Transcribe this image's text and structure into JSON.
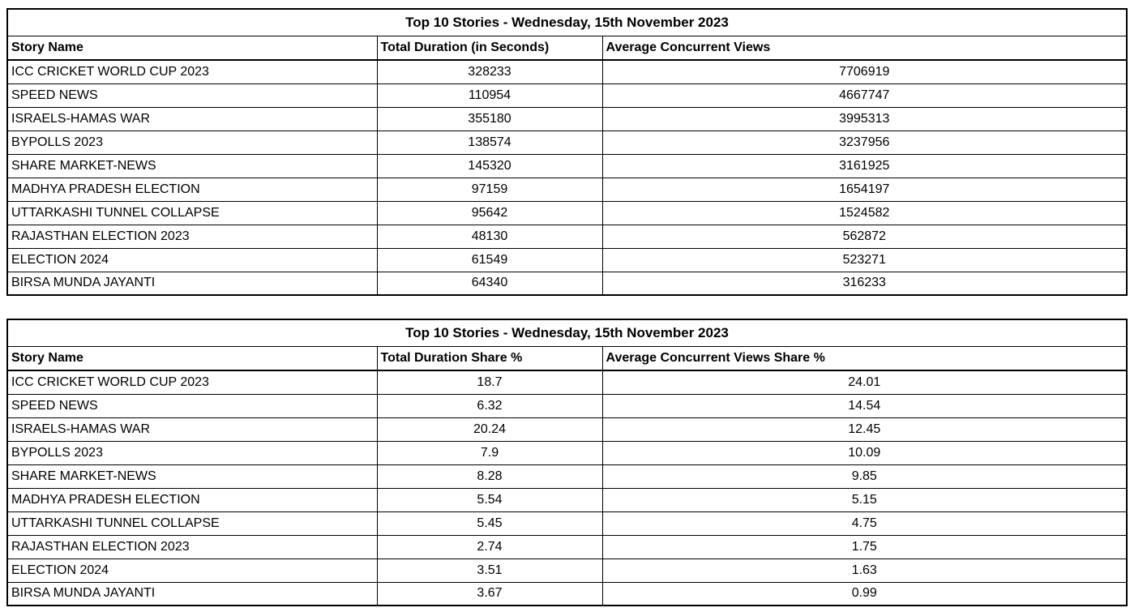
{
  "chart_data": [
    {
      "type": "table",
      "title": "Top 10 Stories - Wednesday, 15th November 2023",
      "columns": [
        "Story Name",
        "Total Duration (in Seconds)",
        "Average Concurrent Views"
      ],
      "rows": [
        [
          "ICC CRICKET WORLD CUP 2023",
          "328233",
          "7706919"
        ],
        [
          "SPEED NEWS",
          "110954",
          "4667747"
        ],
        [
          "ISRAELS-HAMAS WAR",
          "355180",
          "3995313"
        ],
        [
          "BYPOLLS 2023",
          "138574",
          "3237956"
        ],
        [
          "SHARE MARKET-NEWS",
          "145320",
          "3161925"
        ],
        [
          "MADHYA PRADESH ELECTION",
          "97159",
          "1654197"
        ],
        [
          "UTTARKASHI TUNNEL COLLAPSE",
          "95642",
          "1524582"
        ],
        [
          "RAJASTHAN ELECTION 2023",
          "48130",
          "562872"
        ],
        [
          "ELECTION 2024",
          "61549",
          "523271"
        ],
        [
          "BIRSA MUNDA JAYANTI",
          "64340",
          "316233"
        ]
      ]
    },
    {
      "type": "table",
      "title": "Top 10 Stories - Wednesday, 15th November 2023",
      "columns": [
        "Story Name",
        "Total Duration Share %",
        "Average Concurrent Views Share %"
      ],
      "rows": [
        [
          "ICC CRICKET WORLD CUP 2023",
          "18.7",
          "24.01"
        ],
        [
          "SPEED NEWS",
          "6.32",
          "14.54"
        ],
        [
          "ISRAELS-HAMAS WAR",
          "20.24",
          "12.45"
        ],
        [
          "BYPOLLS 2023",
          "7.9",
          "10.09"
        ],
        [
          "SHARE MARKET-NEWS",
          "8.28",
          "9.85"
        ],
        [
          "MADHYA PRADESH ELECTION",
          "5.54",
          "5.15"
        ],
        [
          "UTTARKASHI TUNNEL COLLAPSE",
          "5.45",
          "4.75"
        ],
        [
          "RAJASTHAN ELECTION 2023",
          "2.74",
          "1.75"
        ],
        [
          "ELECTION 2024",
          "3.51",
          "1.63"
        ],
        [
          "BIRSA MUNDA JAYANTI",
          "3.67",
          "0.99"
        ]
      ]
    }
  ],
  "colors": {
    "border": "#000000",
    "text": "#000000",
    "background": "#ffffff"
  }
}
